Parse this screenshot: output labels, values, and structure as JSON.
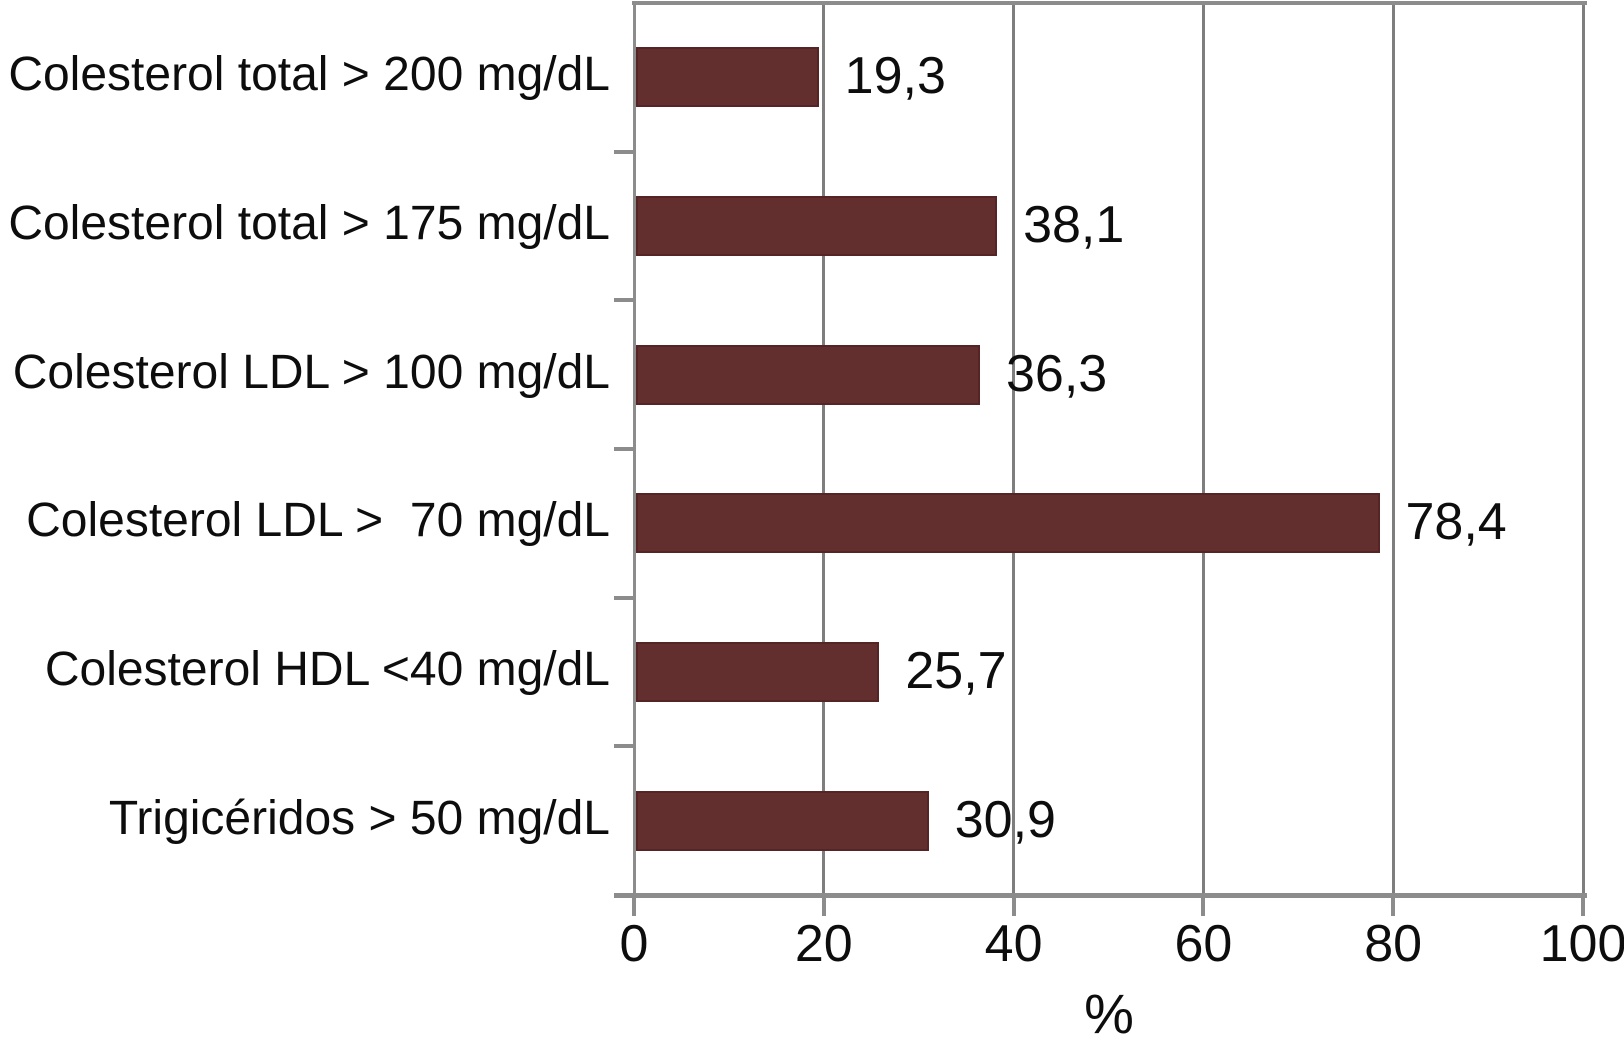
{
  "chart_data": {
    "type": "bar",
    "orientation": "horizontal",
    "title": "",
    "xlabel": "%",
    "ylabel": "",
    "xlim": [
      0,
      100
    ],
    "x_ticks": [
      0,
      20,
      40,
      60,
      80,
      100
    ],
    "grid": "vertical major gridlines on, plot framed top/left/right",
    "legend_position": "none",
    "categories": [
      "Colesterol total > 200 mg/dL",
      "Colesterol total > 175 mg/dL",
      "Colesterol LDL > 100 mg/dL",
      "Colesterol LDL >  70 mg/dL",
      "Colesterol HDL <40 mg/dL",
      "Trigicéridos > 50 mg/dL"
    ],
    "values": [
      19.3,
      38.1,
      36.3,
      78.4,
      25.7,
      30.9
    ],
    "value_labels": [
      "19,3",
      "38,1",
      "36,3",
      "78,4",
      "25,7",
      "30,9"
    ],
    "colors": {
      "bar_fill": "#632e2e",
      "bar_border": "#552424",
      "gridline": "#7e7e7e",
      "axis": "#8c8c8c",
      "text": "#0d0d0d",
      "background": "#ffffff"
    }
  }
}
